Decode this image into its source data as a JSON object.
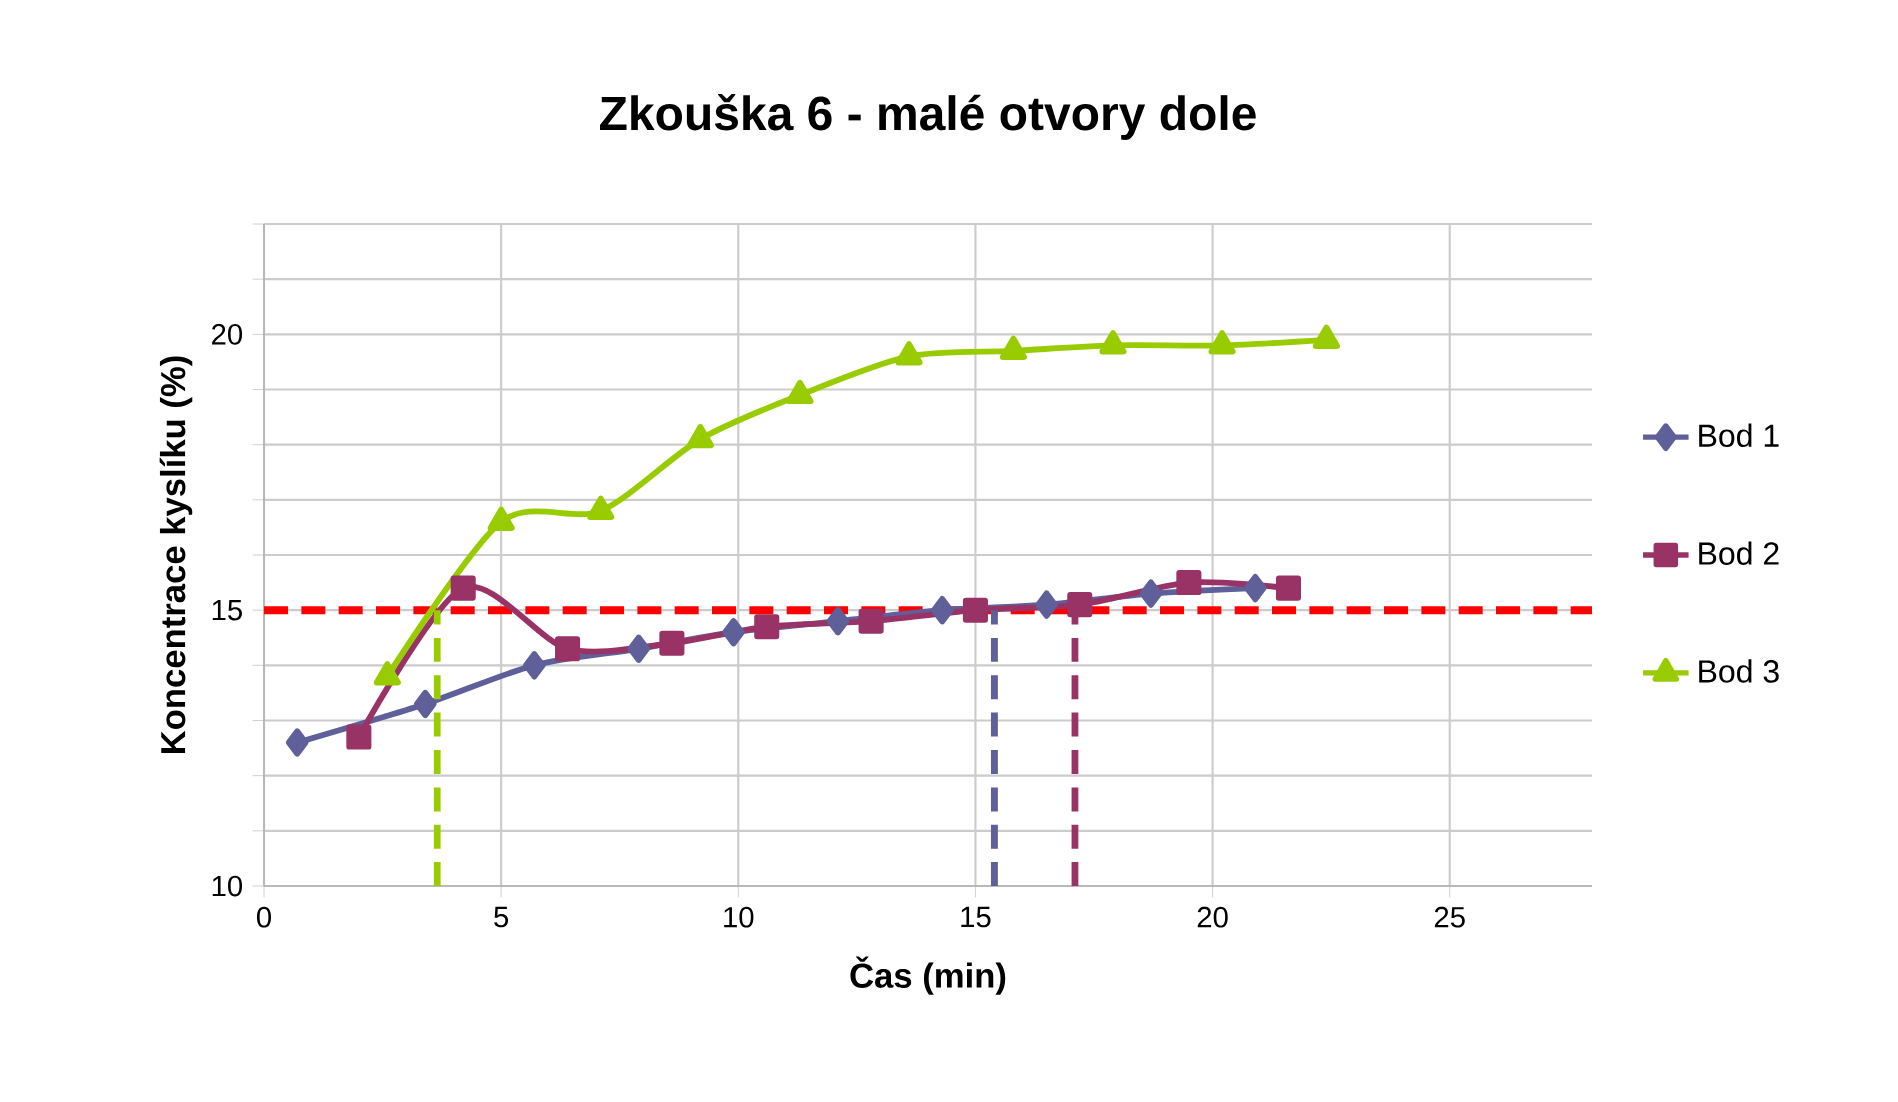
{
  "chart_data": {
    "type": "line",
    "title": "Zkouška 6 - malé otvory dole",
    "xlabel": "Čas (min)",
    "ylabel": "Koncentrace kyslíku (%)",
    "xlim": [
      0,
      28
    ],
    "xticks": [
      0,
      5,
      10,
      15,
      20,
      25
    ],
    "ylim": [
      10,
      22
    ],
    "yticks": [
      10,
      {
        "value": 11,
        "label": null
      },
      {
        "value": 12,
        "label": null
      },
      {
        "value": 13,
        "label": null
      },
      {
        "value": 14,
        "label": null
      },
      15,
      {
        "value": 16,
        "label": null
      },
      {
        "value": 17,
        "label": null
      },
      {
        "value": 18,
        "label": null
      },
      {
        "value": 19,
        "label": null
      },
      20,
      {
        "value": 21,
        "label": null
      },
      {
        "value": 22,
        "label": null
      }
    ],
    "grid": true,
    "legend": "right",
    "series": [
      {
        "name": "Bod 1",
        "color": "#5f5f9a",
        "marker": "diamond",
        "x": [
          0.7,
          3.4,
          5.7,
          7.9,
          9.9,
          12.1,
          14.3,
          16.5,
          18.7,
          20.9
        ],
        "values": [
          12.6,
          13.3,
          14.0,
          14.3,
          14.6,
          14.8,
          15.0,
          15.1,
          15.3,
          15.4
        ]
      },
      {
        "name": "Bod 2",
        "color": "#993366",
        "marker": "square",
        "x": [
          2.0,
          4.2,
          6.4,
          8.6,
          10.6,
          12.8,
          15.0,
          17.2,
          19.5,
          21.6
        ],
        "values": [
          12.7,
          15.4,
          14.3,
          14.4,
          14.7,
          14.8,
          15.0,
          15.1,
          15.5,
          15.4
        ]
      },
      {
        "name": "Bod 3",
        "color": "#99cc00",
        "marker": "triangle",
        "x": [
          2.6,
          5.0,
          7.1,
          9.2,
          11.3,
          13.6,
          15.8,
          17.9,
          20.2,
          22.4
        ],
        "values": [
          13.8,
          16.6,
          16.8,
          18.1,
          18.9,
          19.6,
          19.7,
          19.8,
          19.8,
          19.9
        ]
      },
      {
        "color": "#99cc00",
        "marker": "none",
        "line_style": "dashed",
        "x": [
          3.65,
          3.65
        ],
        "values": [
          10,
          15
        ]
      },
      {
        "color": "#5f5f9a",
        "marker": "none",
        "line_style": "dashed",
        "x": [
          15.4,
          15.4
        ],
        "values": [
          10,
          15
        ]
      },
      {
        "color": "#993366",
        "marker": "none",
        "line_style": "dashed",
        "x": [
          17.1,
          17.1
        ],
        "values": [
          10,
          15
        ]
      }
    ],
    "ref_lines": [
      {
        "axis": "y",
        "value": 15,
        "color": "#ff0000",
        "line_style": "dashed"
      }
    ]
  }
}
